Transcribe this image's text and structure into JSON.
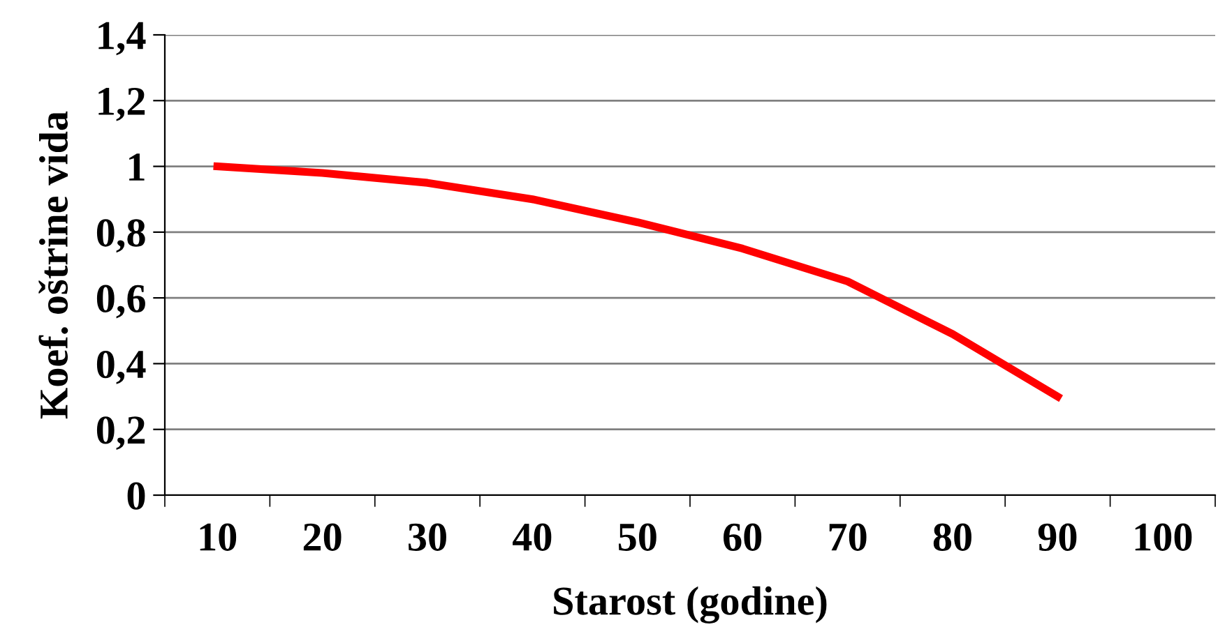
{
  "chart_data": {
    "type": "line",
    "xlabel": "Starost (godine)",
    "ylabel": "Koef. oštrine vida",
    "categories": [
      "10",
      "20",
      "30",
      "40",
      "50",
      "60",
      "70",
      "80",
      "90",
      "100"
    ],
    "series": [
      {
        "color": "#ff0000",
        "values": [
          1,
          0.98,
          0.95,
          0.9,
          0.83,
          0.75,
          0.65,
          0.49,
          0.3,
          null
        ]
      }
    ],
    "ylim": [
      0,
      1.4
    ],
    "yticks": [
      0,
      {
        "value": 0.2,
        "label": "0,2"
      },
      {
        "value": 0.4,
        "label": "0,4"
      },
      {
        "value": 0.6,
        "label": "0,6"
      },
      {
        "value": 0.8,
        "label": "0,8"
      },
      1,
      {
        "value": 1.2,
        "label": "1,2"
      },
      {
        "value": 1.4,
        "label": "1,4"
      }
    ],
    "grid": "y",
    "marker": "none",
    "line_style": "solid",
    "legend": false
  }
}
